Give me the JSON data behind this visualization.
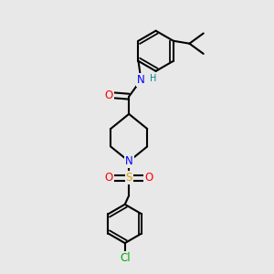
{
  "bg_color": "#e8e8e8",
  "bond_color": "#000000",
  "bond_width": 1.5,
  "atom_colors": {
    "N": "#0000ff",
    "O": "#ff0000",
    "S": "#ccaa00",
    "Cl": "#00aa00",
    "H": "#008888",
    "C": "#000000"
  },
  "font_size_atom": 8.5,
  "figsize": [
    3.0,
    3.0
  ],
  "dpi": 100
}
